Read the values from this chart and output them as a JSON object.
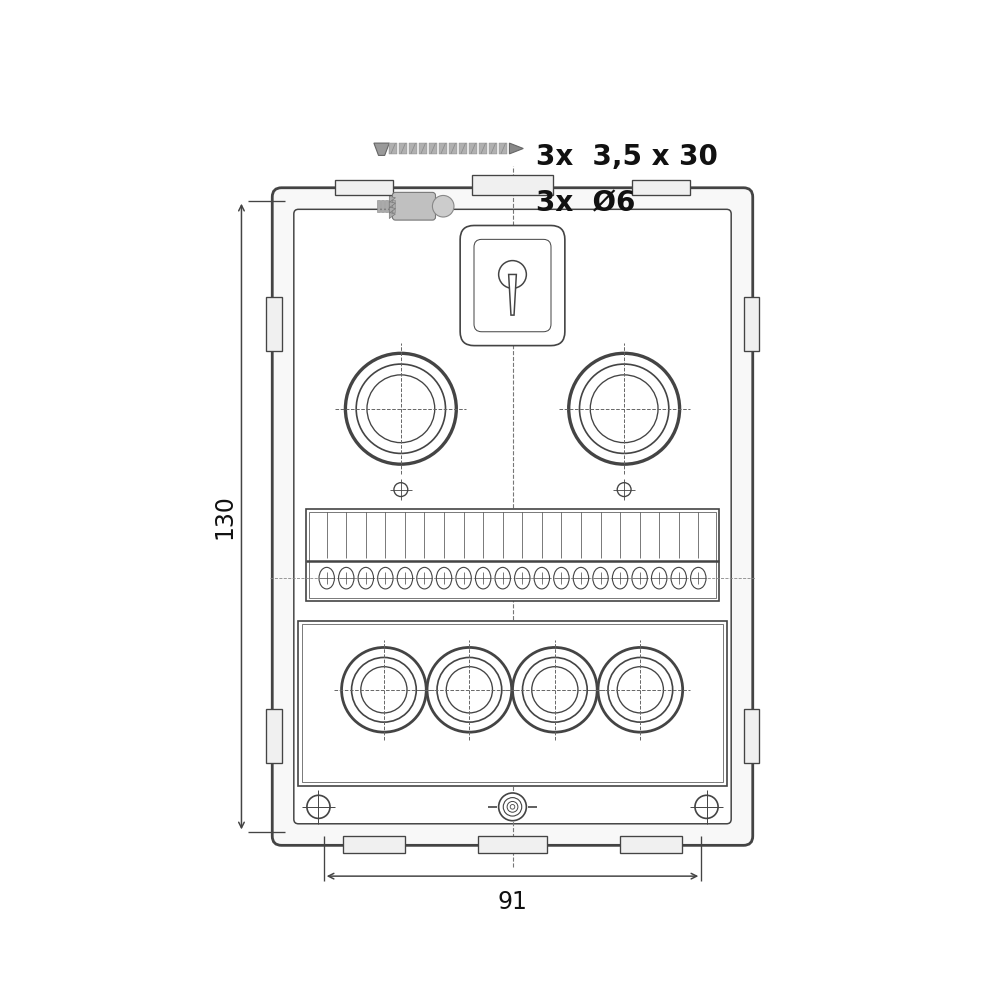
{
  "bg_color": "#ffffff",
  "lc": "#444444",
  "lc2": "#555555",
  "lw": 1.2,
  "tlw": 2.0,
  "fig_size": [
    10,
    10
  ],
  "dpi": 100,
  "screw_text": "3x  3,5 x 30",
  "anchor_text": "3x  Ø6",
  "dim_130": "130",
  "dim_91": "91"
}
